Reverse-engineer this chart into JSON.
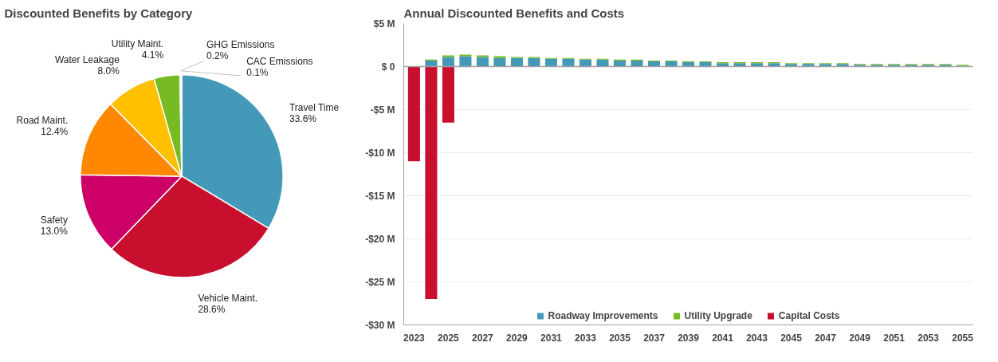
{
  "chart_data": [
    {
      "type": "pie",
      "title": "Discounted Benefits by Category",
      "value_labels": [
        "33.6%",
        "28.6%",
        "13.0%",
        "12.4%",
        "8.0%",
        "4.1%",
        "0.2%",
        "0.1%"
      ],
      "categories": [
        "Travel Time",
        "Vehicle Maint.",
        "Safety",
        "Road Maint.",
        "Water Leakage",
        "Utility Maint.",
        "GHG Emissions",
        "CAC Emissions"
      ],
      "values": [
        33.6,
        28.6,
        13.0,
        12.4,
        8.0,
        4.1,
        0.2,
        0.1
      ],
      "colors": [
        "#4499b8",
        "#c8102e",
        "#cc0066",
        "#ff8800",
        "#ffc000",
        "#77bb22",
        "#a9d18e",
        "#bfbfbf"
      ]
    },
    {
      "type": "bar",
      "title": "Annual Discounted Benefits and Costs",
      "stacked": true,
      "legend": "bottom",
      "grid": "y",
      "categories": [
        "2023",
        null,
        "2025",
        null,
        "2027",
        null,
        "2029",
        null,
        "2031",
        null,
        "2033",
        null,
        "2035",
        null,
        "2037",
        null,
        "2039",
        null,
        "2041",
        null,
        "2043",
        null,
        "2045",
        null,
        "2047",
        null,
        "2049",
        null,
        "2051",
        null,
        "2053",
        null,
        "2055"
      ],
      "ylim": [
        -30,
        5
      ],
      "yticks": [
        {
          "value": 5,
          "label": "$5 M"
        },
        {
          "value": 0,
          "label": "$ 0"
        },
        {
          "value": -5,
          "label": "-$5 M"
        },
        {
          "value": -10,
          "label": "-$10 M"
        },
        {
          "value": -15,
          "label": "-$15 M"
        },
        {
          "value": -20,
          "label": "-$20 M"
        },
        {
          "value": -25,
          "label": "-$25 M"
        },
        {
          "value": -30,
          "label": "-$30 M"
        }
      ],
      "series": [
        {
          "name": "Roadway Improvements",
          "color": "#4499b8",
          "values": [
            null,
            0.7,
            1.1,
            1.2,
            1.1,
            1.0,
            1.0,
            1.0,
            0.9,
            0.9,
            0.8,
            0.8,
            0.7,
            0.7,
            0.6,
            0.6,
            0.5,
            0.5,
            0.4,
            0.4,
            0.4,
            0.4,
            0.3,
            0.3,
            0.3,
            0.3,
            0.2,
            0.2,
            0.2,
            0.2,
            0.2,
            0.2,
            0.1
          ]
        },
        {
          "name": "Utility Upgrade",
          "color": "#77bb22",
          "values": [
            null,
            0.1,
            0.2,
            0.2,
            0.2,
            0.2,
            0.1,
            0.1,
            0.1,
            0.1,
            0.1,
            0.1,
            0.1,
            0.1,
            0.1,
            0.1,
            0.1,
            0.1,
            0.1,
            0.1,
            0.1,
            0.1,
            0.1,
            0.1,
            0.1,
            0.1,
            0.1,
            0.1,
            0.1,
            0.1,
            0.1,
            0.1,
            0.1
          ]
        },
        {
          "name": "Capital Costs",
          "color": "#c8102e",
          "values": [
            -11.0,
            -27.0,
            -6.5,
            null,
            null,
            null,
            null,
            null,
            null,
            null,
            null,
            null,
            null,
            null,
            null,
            null,
            null,
            null,
            null,
            null,
            null,
            null,
            null,
            null,
            null,
            null,
            null,
            null,
            null,
            null,
            null,
            null,
            null
          ]
        }
      ]
    }
  ]
}
